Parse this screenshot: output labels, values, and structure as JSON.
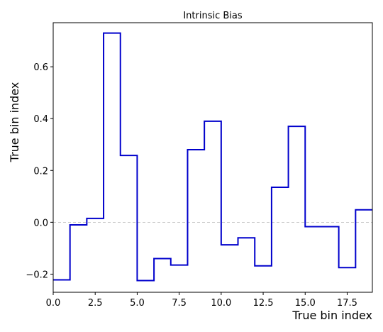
{
  "chart_data": {
    "type": "line",
    "drawstyle": "steps-post",
    "title": "Intrinsic Bias",
    "xlabel": "True bin index",
    "ylabel": "True bin index",
    "xlim": [
      0,
      19
    ],
    "ylim": [
      -0.27,
      0.77
    ],
    "xticks": [
      0,
      2.5,
      5,
      7.5,
      10,
      12.5,
      15,
      17.5
    ],
    "xtick_labels": [
      "0.0",
      "2.5",
      "5.0",
      "7.5",
      "10.0",
      "12.5",
      "15.0",
      "17.5"
    ],
    "yticks": [
      -0.2,
      0,
      0.2,
      0.4,
      0.6
    ],
    "ytick_labels": [
      "−0.2",
      "0.0",
      "0.2",
      "0.4",
      "0.6"
    ],
    "grid": false,
    "reference_line": {
      "y": 0,
      "style": "dashed",
      "color": "#bbbbbb"
    },
    "series": [
      {
        "color": "#0000cc",
        "x": [
          0,
          1,
          2,
          3,
          4,
          5,
          6,
          7,
          8,
          9,
          10,
          11,
          12,
          13,
          14,
          15,
          16,
          17,
          18,
          19
        ],
        "y": [
          -0.222,
          -0.01,
          0.015,
          0.73,
          0.258,
          -0.225,
          -0.14,
          -0.165,
          0.28,
          0.39,
          -0.087,
          -0.06,
          -0.168,
          0.135,
          0.37,
          -0.017,
          -0.017,
          -0.175,
          0.048,
          0.048
        ]
      }
    ]
  }
}
